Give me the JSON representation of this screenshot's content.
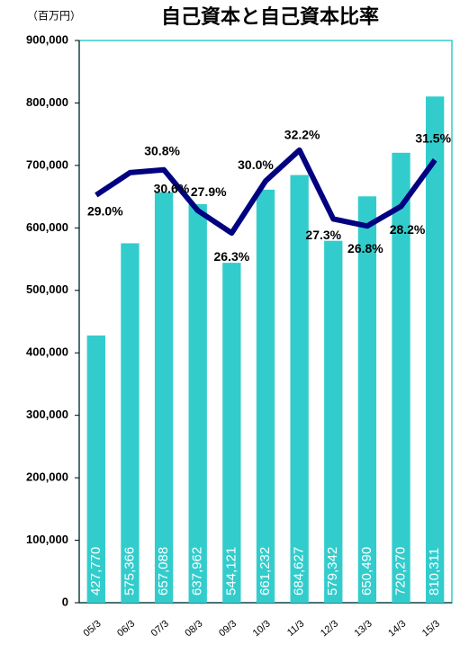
{
  "chart_data": {
    "type": "bar-line",
    "title": "自己資本と自己資本比率",
    "unit_label": "（百万円）",
    "categories": [
      "05/3",
      "06/3",
      "07/3",
      "08/3",
      "09/3",
      "10/3",
      "11/3",
      "12/3",
      "13/3",
      "14/3",
      "15/3"
    ],
    "series": [
      {
        "type": "bar",
        "color": "#33cccc",
        "values": [
          427770,
          575366,
          657088,
          637962,
          544121,
          661232,
          684627,
          579342,
          650490,
          720270,
          810311
        ],
        "value_labels": [
          "427,770",
          "575,366",
          "657,088",
          "637,962",
          "544,121",
          "661,232",
          "684,627",
          "579,342",
          "650,490",
          "720,270",
          "810,311"
        ]
      },
      {
        "type": "line",
        "color": "#000080",
        "axis": "y2",
        "values": [
          29.0,
          30.6,
          30.8,
          27.9,
          26.3,
          30.0,
          32.2,
          27.3,
          26.8,
          28.2,
          31.5
        ],
        "value_labels": [
          "29.0%",
          "30.6%",
          "30.8%",
          "27.9%",
          "26.3%",
          "30.0%",
          "32.2%",
          "27.3%",
          "26.8%",
          "28.2%",
          "31.5%"
        ]
      }
    ],
    "ylim": [
      0,
      900000
    ],
    "yticks": [
      0,
      {
        "value": 100000,
        "label": "100,000"
      },
      {
        "value": 200000,
        "label": "200,000"
      },
      {
        "value": 300000,
        "label": "300,000"
      },
      {
        "value": 400000,
        "label": "400,000"
      },
      {
        "value": 500000,
        "label": "500,000"
      },
      {
        "value": 600000,
        "label": "600,000"
      },
      {
        "value": 700000,
        "label": "700,000"
      },
      {
        "value": 800000,
        "label": "800,000"
      },
      {
        "value": 900000,
        "label": "900,000"
      }
    ],
    "y2lim": [
      0,
      40
    ]
  }
}
